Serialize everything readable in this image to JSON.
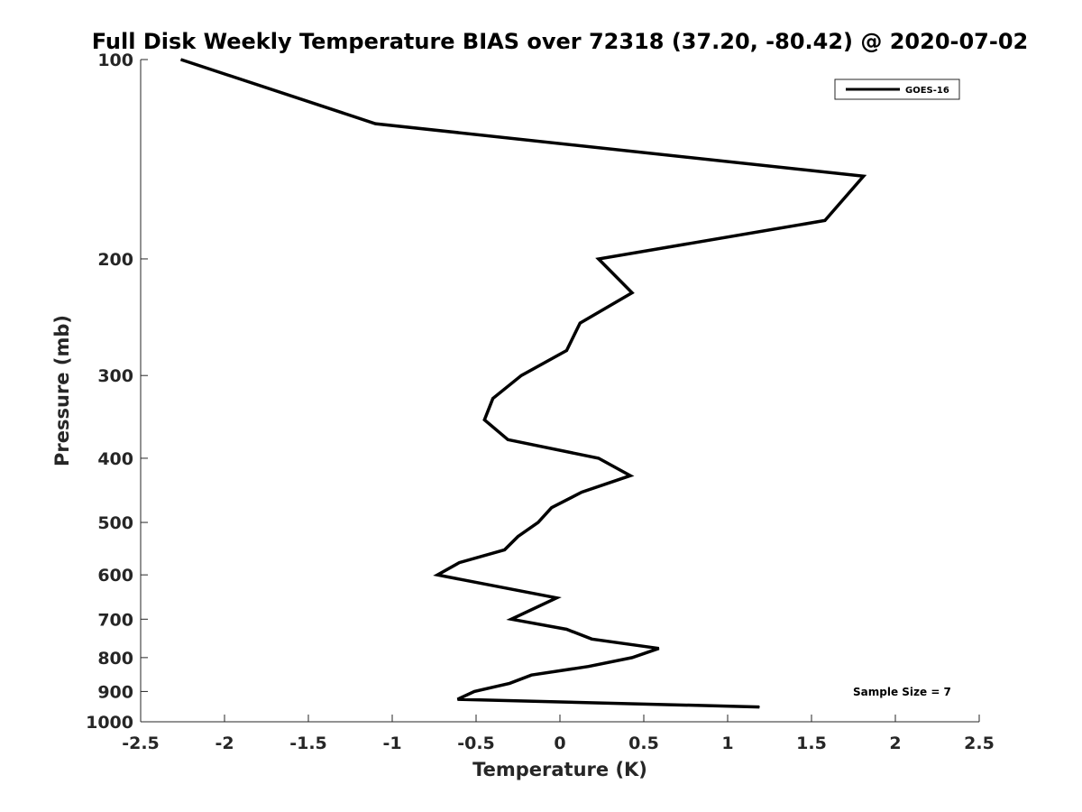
{
  "chart_data": {
    "type": "line",
    "title": "Full Disk Weekly Temperature BIAS over 72318 (37.20, -80.42) @ 2020-07-02",
    "xlabel": "Temperature (K)",
    "ylabel": "Pressure (mb)",
    "xlim": [
      -2.5,
      2.5
    ],
    "ylim": [
      100,
      1000
    ],
    "y_scale": "log",
    "y_reversed": true,
    "grid": false,
    "legend_position": "top-right",
    "x_ticks": [
      "-2.5",
      "-2",
      "-1.5",
      "-1",
      "-0.5",
      "0",
      "0.5",
      "1",
      "1.5",
      "2",
      "2.5"
    ],
    "y_ticks": [
      "100",
      "200",
      "300",
      "400",
      "500",
      "600",
      "700",
      "800",
      "900",
      "1000"
    ],
    "series": [
      {
        "name": "GOES-16",
        "color": "#000000",
        "points": [
          {
            "p": 100,
            "t": -2.26
          },
          {
            "p": 125,
            "t": -1.1
          },
          {
            "p": 150,
            "t": 1.81
          },
          {
            "p": 175,
            "t": 1.58
          },
          {
            "p": 200,
            "t": 0.23
          },
          {
            "p": 225,
            "t": 0.43
          },
          {
            "p": 250,
            "t": 0.12
          },
          {
            "p": 275,
            "t": 0.04
          },
          {
            "p": 300,
            "t": -0.23
          },
          {
            "p": 325,
            "t": -0.4
          },
          {
            "p": 350,
            "t": -0.45
          },
          {
            "p": 375,
            "t": -0.31
          },
          {
            "p": 400,
            "t": 0.23
          },
          {
            "p": 425,
            "t": 0.42
          },
          {
            "p": 450,
            "t": 0.13
          },
          {
            "p": 475,
            "t": -0.05
          },
          {
            "p": 500,
            "t": -0.13
          },
          {
            "p": 525,
            "t": -0.25
          },
          {
            "p": 550,
            "t": -0.33
          },
          {
            "p": 575,
            "t": -0.6
          },
          {
            "p": 600,
            "t": -0.73
          },
          {
            "p": 650,
            "t": -0.02
          },
          {
            "p": 700,
            "t": -0.29
          },
          {
            "p": 725,
            "t": 0.04
          },
          {
            "p": 750,
            "t": 0.19
          },
          {
            "p": 775,
            "t": 0.59
          },
          {
            "p": 800,
            "t": 0.43
          },
          {
            "p": 825,
            "t": 0.17
          },
          {
            "p": 850,
            "t": -0.17
          },
          {
            "p": 875,
            "t": -0.3
          },
          {
            "p": 900,
            "t": -0.51
          },
          {
            "p": 925,
            "t": -0.61
          },
          {
            "p": 950,
            "t": 1.19
          }
        ]
      }
    ],
    "annotation": "Sample Size = 7"
  }
}
